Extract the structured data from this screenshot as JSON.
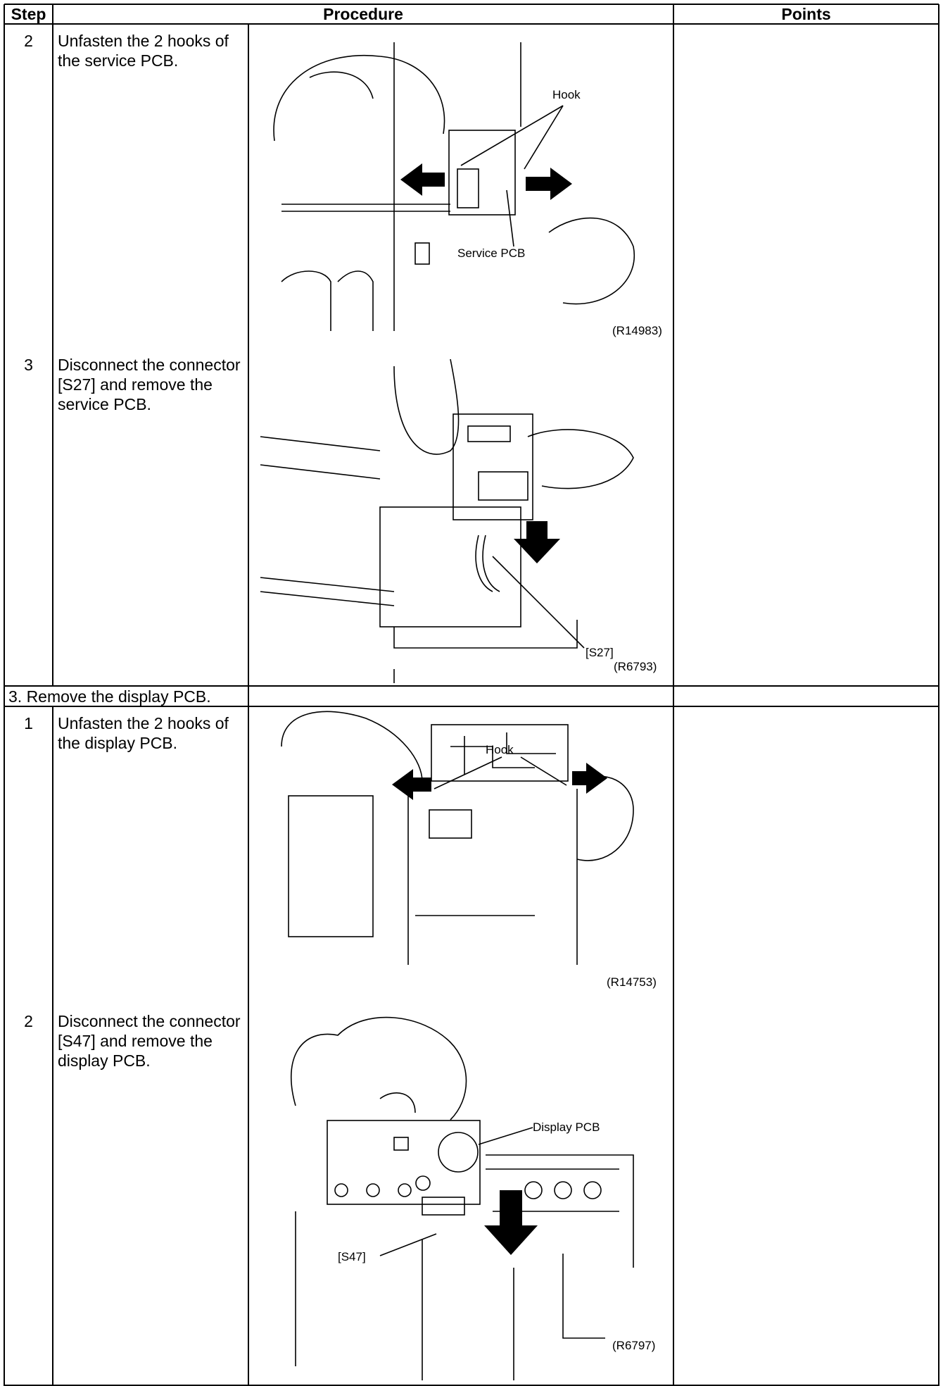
{
  "header": {
    "step": "Step",
    "procedure": "Procedure",
    "points": "Points"
  },
  "rows": [
    {
      "step": "2",
      "text": "Unfasten the 2 hooks of the service PCB.",
      "figure": {
        "labels": [
          "Hook",
          "Service PCB"
        ],
        "code": "(R14983)"
      }
    },
    {
      "step": "3",
      "text": "Disconnect the connector [S27] and remove the service PCB.",
      "figure": {
        "labels": [
          "[S27]"
        ],
        "code": "(R6793)"
      }
    },
    {
      "section": "3.  Remove the display PCB."
    },
    {
      "step": "1",
      "text": "Unfasten the 2 hooks of the display PCB.",
      "figure": {
        "labels": [
          "Hook"
        ],
        "code": "(R14753)"
      }
    },
    {
      "step": "2",
      "text": "Disconnect the connector [S47] and remove the display PCB.",
      "figure": {
        "labels": [
          "Display PCB",
          "[S47]"
        ],
        "code": "(R6797)"
      }
    }
  ]
}
